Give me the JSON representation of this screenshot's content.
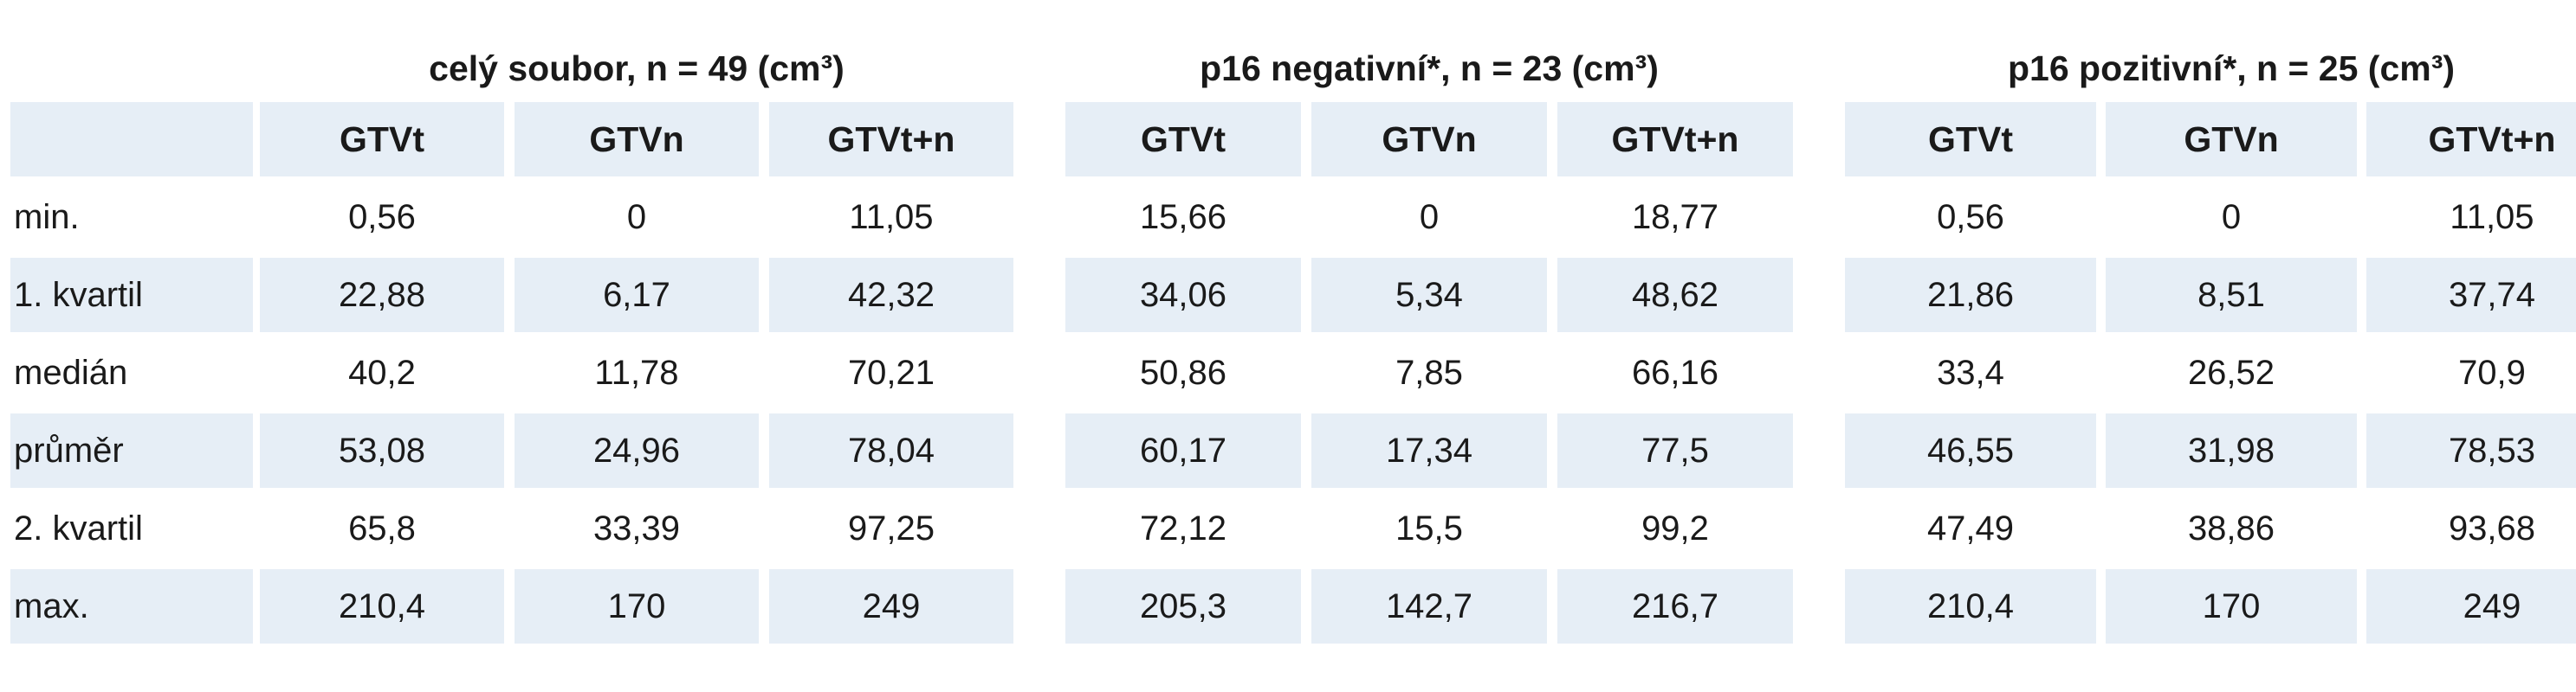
{
  "groups": [
    {
      "title": "celý soubor, n = 49 (cm³)"
    },
    {
      "title": "p16 negativní*, n = 23 (cm³)"
    },
    {
      "title": "p16 pozitivní*, n = 25 (cm³)"
    }
  ],
  "columns": [
    "GTVt",
    "GTVn",
    "GTVt+n"
  ],
  "rows": [
    {
      "label": "min.",
      "values": [
        "0,56",
        "0",
        "11,05",
        "15,66",
        "0",
        "18,77",
        "0,56",
        "0",
        "11,05"
      ]
    },
    {
      "label": "1. kvartil",
      "values": [
        "22,88",
        "6,17",
        "42,32",
        "34,06",
        "5,34",
        "48,62",
        "21,86",
        "8,51",
        "37,74"
      ]
    },
    {
      "label": "medián",
      "values": [
        "40,2",
        "11,78",
        "70,21",
        "50,86",
        "7,85",
        "66,16",
        "33,4",
        "26,52",
        "70,9"
      ]
    },
    {
      "label": "průměr",
      "values": [
        "53,08",
        "24,96",
        "78,04",
        "60,17",
        "17,34",
        "77,5",
        "46,55",
        "31,98",
        "78,53"
      ]
    },
    {
      "label": "2. kvartil",
      "values": [
        "65,8",
        "33,39",
        "97,25",
        "72,12",
        "15,5",
        "99,2",
        "47,49",
        "38,86",
        "93,68"
      ]
    },
    {
      "label": "max.",
      "values": [
        "210,4",
        "170",
        "249",
        "205,3",
        "142,7",
        "216,7",
        "210,4",
        "170",
        "249"
      ]
    }
  ],
  "colors": {
    "shade": "#e6eef6",
    "text": "#1a1a1a"
  }
}
